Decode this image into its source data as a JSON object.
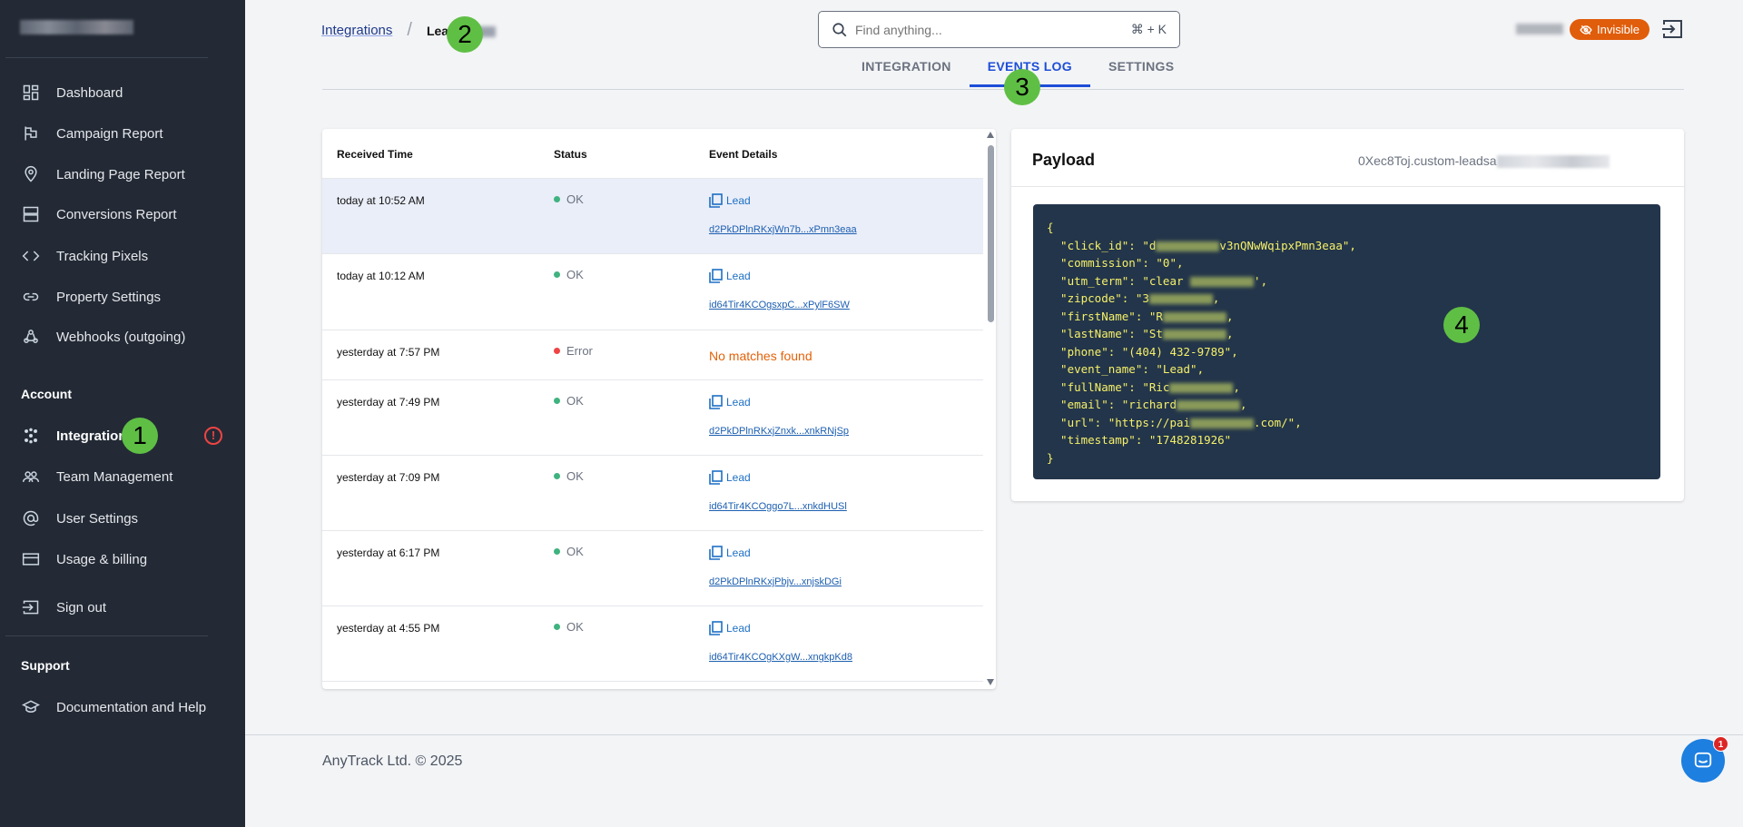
{
  "sidebar": {
    "items": [
      {
        "label": "Dashboard",
        "icon": "dashboard-icon"
      },
      {
        "label": "Campaign Report",
        "icon": "flag-icon"
      },
      {
        "label": "Landing Page Report",
        "icon": "map-pin-icon"
      },
      {
        "label": "Conversions Report",
        "icon": "server-icon"
      },
      {
        "label": "Tracking Pixels",
        "icon": "code-icon"
      },
      {
        "label": "Property Settings",
        "icon": "link-icon"
      },
      {
        "label": "Webhooks (outgoing)",
        "icon": "webhook-icon"
      }
    ],
    "account_label": "Account",
    "account_items": [
      {
        "label": "Integrations",
        "icon": "integrations-icon",
        "active": true
      },
      {
        "label": "Team Management",
        "icon": "team-icon"
      },
      {
        "label": "User Settings",
        "icon": "at-icon"
      },
      {
        "label": "Usage & billing",
        "icon": "credit-card-icon"
      },
      {
        "label": "Sign out",
        "icon": "sign-out-icon"
      }
    ],
    "alert_icon": "!",
    "support_label": "Support",
    "support_items": [
      {
        "label": "Documentation and Help",
        "icon": "graduation-cap-icon"
      }
    ]
  },
  "breadcrumb": {
    "parent": "Integrations",
    "current": "Lea"
  },
  "search": {
    "placeholder": "Find anything...",
    "shortcut": "⌘ + K"
  },
  "tabs": [
    {
      "label": "INTEGRATION"
    },
    {
      "label": "EVENTS LOG",
      "active": true
    },
    {
      "label": "SETTINGS"
    }
  ],
  "header": {
    "visibility_badge": "Invisible",
    "badge_color": "#e05d0b"
  },
  "table": {
    "columns": [
      "Received Time",
      "Status",
      "Event Details"
    ],
    "rows": [
      {
        "time": "today at 10:52 AM",
        "status": "OK",
        "event": "Lead",
        "id": "d2PkDPlnRKxjWn7b...xPmn3eaa",
        "selected": true
      },
      {
        "time": "today at 10:12 AM",
        "status": "OK",
        "event": "Lead",
        "id": "id64Tir4KCOgsxpC...xPylF6SW"
      },
      {
        "time": "yesterday at 7:57 PM",
        "status": "Error",
        "event": "No matches found",
        "id": ""
      },
      {
        "time": "yesterday at 7:49 PM",
        "status": "OK",
        "event": "Lead",
        "id": "d2PkDPlnRKxjZnxk...xnkRNjSp"
      },
      {
        "time": "yesterday at 7:09 PM",
        "status": "OK",
        "event": "Lead",
        "id": "id64Tir4KCOggo7L...xnkdHUSl"
      },
      {
        "time": "yesterday at 6:17 PM",
        "status": "OK",
        "event": "Lead",
        "id": "d2PkDPlnRKxjPbjv...xnjskDGi"
      },
      {
        "time": "yesterday at 4:55 PM",
        "status": "OK",
        "event": "Lead",
        "id": "id64Tir4KCOgKXgW...xngkpKd8"
      }
    ],
    "status_colors": {
      "OK": "#3fb37f",
      "Error": "#ef4444"
    }
  },
  "payload": {
    "title": "Payload",
    "id": "0Xec8Toj.custom-leadsa",
    "lines": [
      "{",
      "  \"click_id\": \"d|v3nQNwWqipxPmn3eaa\",",
      "  \"commission\": \"0\",",
      "  \"utm_term\": \"clear |',",
      "  \"zipcode\": \"3|,",
      "  \"firstName\": \"R|,",
      "  \"lastName\": \"St|,",
      "  \"phone\": \"(404) 432-9789\",",
      "  \"event_name\": \"Lead\",",
      "  \"fullName\": \"Ric|,",
      "  \"email\": \"richard|,",
      "  \"url\": \"https://pai|.com/\",",
      "  \"timestamp\": \"1748281926\"",
      "}"
    ]
  },
  "footer": {
    "copyright": "AnyTrack Ltd. © 2025"
  },
  "chat": {
    "unread": "1"
  },
  "annotations": [
    "1",
    "2",
    "3",
    "4"
  ]
}
